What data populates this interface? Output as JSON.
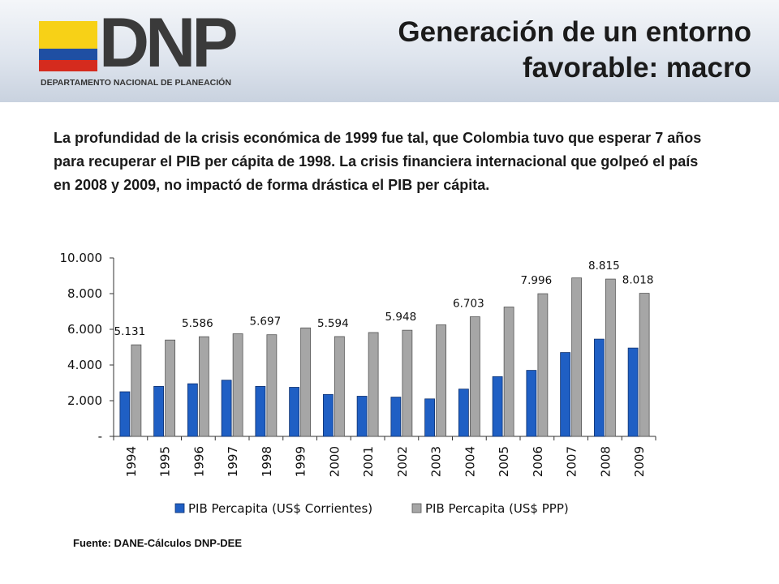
{
  "header": {
    "logo_text": "DNP",
    "logo_subtitle": "DEPARTAMENTO NACIONAL DE PLANEACIÓN",
    "title_line1": "Generación de un entorno",
    "title_line2": "favorable: macro"
  },
  "body_text": "La profundidad de la crisis económica de 1999 fue tal, que Colombia tuvo que esperar 7 años para recuperar el PIB per cápita de 1998. La crisis financiera internacional que golpeó el país en 2008 y 2009, no impactó de forma drástica el PIB per cápita.",
  "source": "Fuente: DANE-Cálculos DNP-DEE",
  "colors": {
    "flag_yellow": "#f7d117",
    "flag_blue": "#1f4fa3",
    "flag_red": "#d52b1e",
    "series_current": "#1f5fc4",
    "series_ppp": "#a6a6a6"
  },
  "chart_data": {
    "type": "bar",
    "categories": [
      "1994",
      "1995",
      "1996",
      "1997",
      "1998",
      "1999",
      "2000",
      "2001",
      "2002",
      "2003",
      "2004",
      "2005",
      "2006",
      "2007",
      "2008",
      "2009"
    ],
    "series": [
      {
        "name": "PIB Percapita (US$ Corrientes)",
        "values": [
          2500,
          2800,
          2950,
          3150,
          2800,
          2750,
          2350,
          2250,
          2200,
          2100,
          2650,
          3350,
          3700,
          4700,
          5450,
          4950
        ]
      },
      {
        "name": "PIB Percapita (US$ PPP)",
        "values": [
          5131,
          5400,
          5586,
          5750,
          5697,
          6080,
          5594,
          5820,
          5948,
          6250,
          6703,
          7250,
          7996,
          8880,
          8815,
          8018
        ]
      }
    ],
    "data_labels": [
      {
        "category": "1994",
        "text": "5.131"
      },
      {
        "category": "1996",
        "text": "5.586"
      },
      {
        "category": "1998",
        "text": "5.697"
      },
      {
        "category": "2000",
        "text": "5.594"
      },
      {
        "category": "2002",
        "text": "5.948"
      },
      {
        "category": "2004",
        "text": "6.703"
      },
      {
        "category": "2006",
        "text": "7.996"
      },
      {
        "category": "2008",
        "text": "8.815"
      },
      {
        "category": "2009",
        "text": "8.018"
      }
    ],
    "yticks": [
      {
        "value": 0,
        "label": "-"
      },
      {
        "value": 2000,
        "label": "2.000"
      },
      {
        "value": 4000,
        "label": "4.000"
      },
      {
        "value": 6000,
        "label": "6.000"
      },
      {
        "value": 8000,
        "label": "8.000"
      },
      {
        "value": 10000,
        "label": "10.000"
      }
    ],
    "ylim": [
      0,
      10000
    ],
    "grid": false,
    "legend_position": "bottom"
  }
}
